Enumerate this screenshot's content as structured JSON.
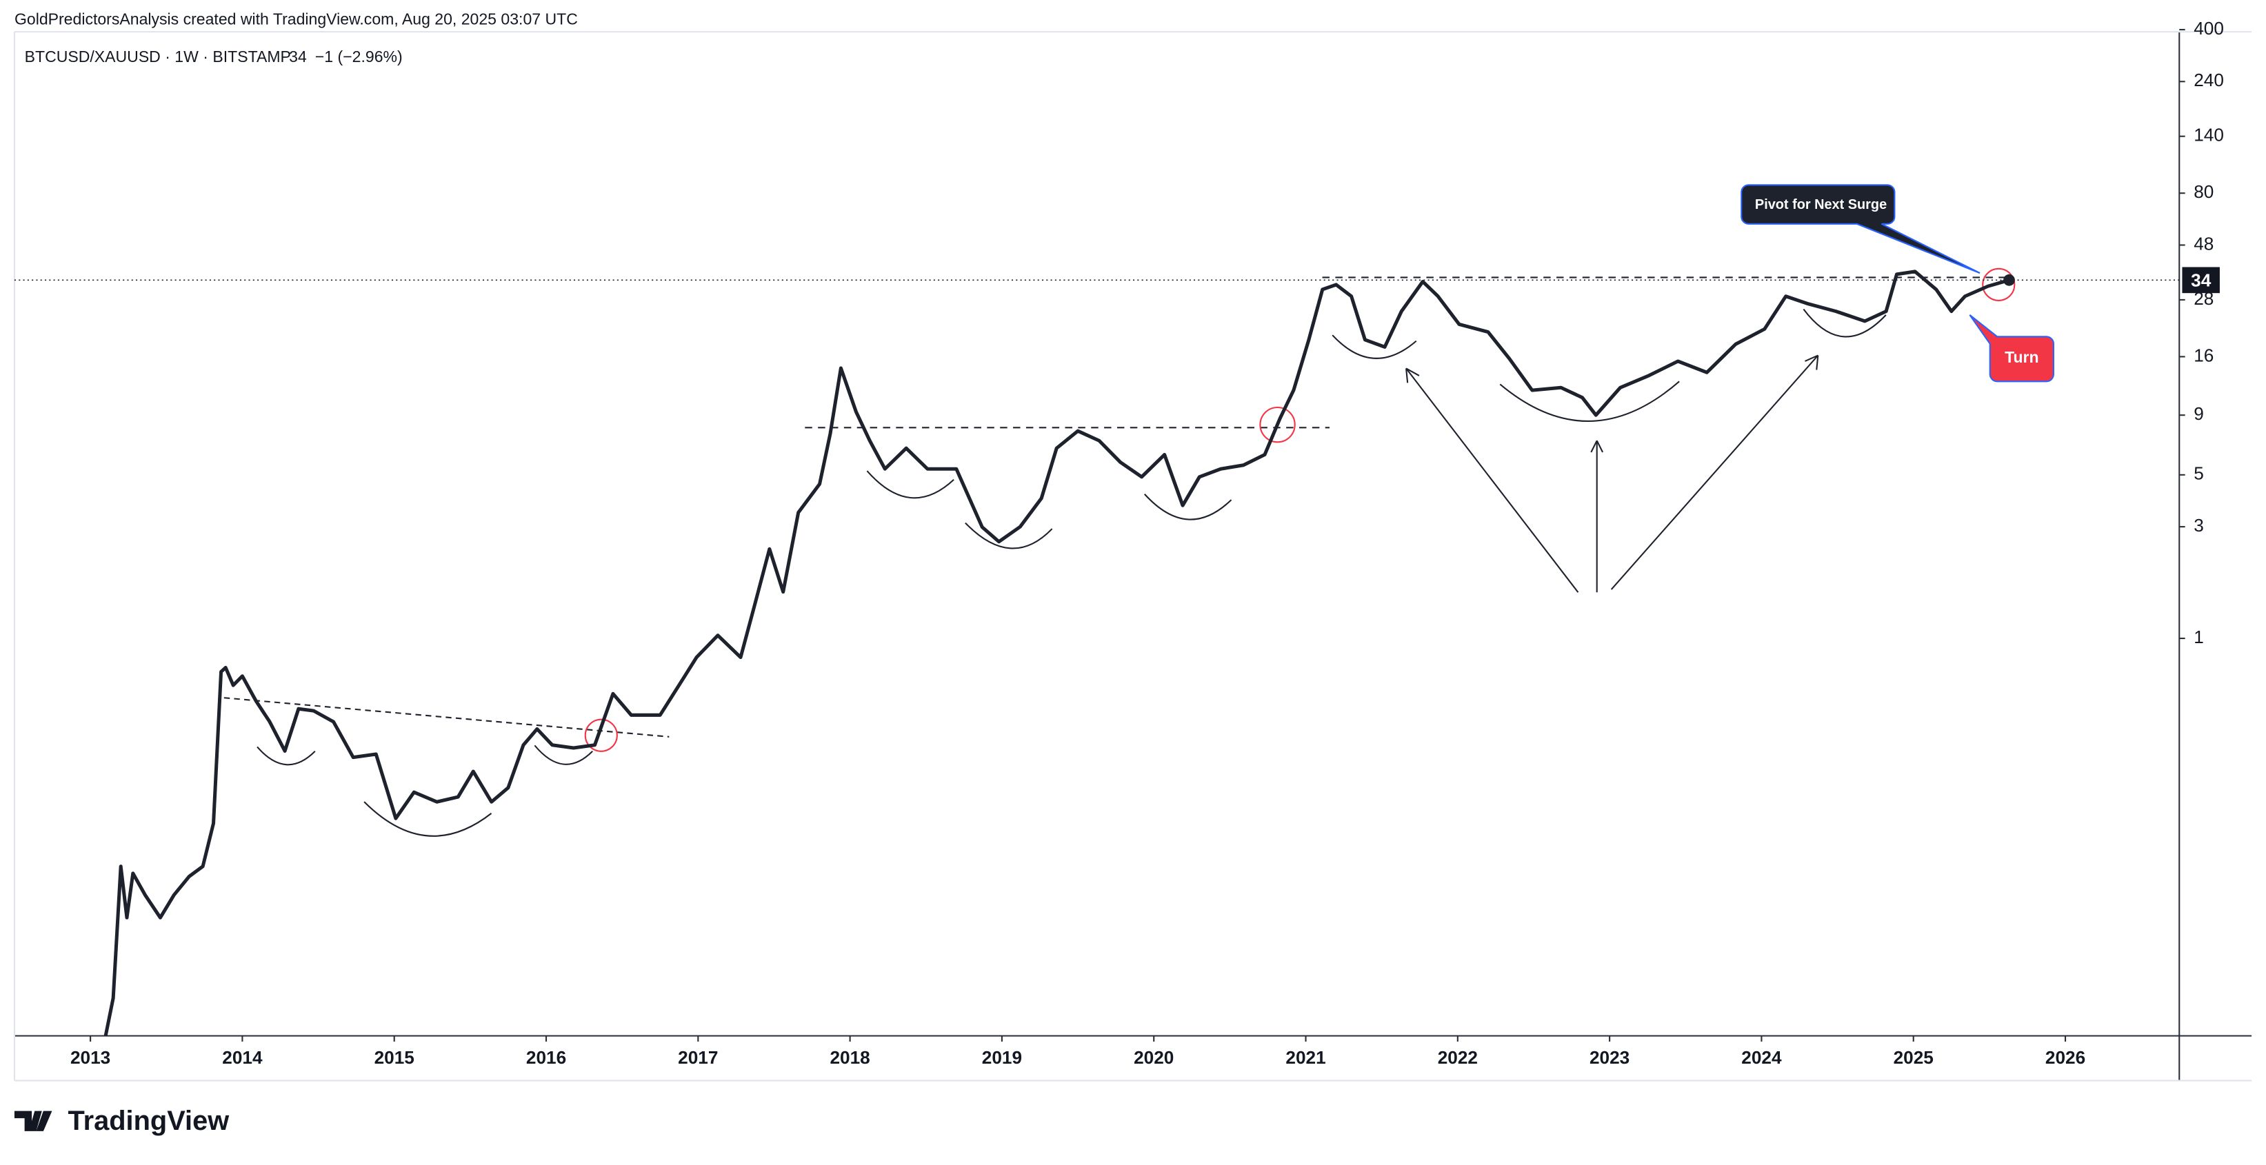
{
  "header": {
    "author_line": "GoldPredictorsAnalysis created with TradingView.com, Aug 20, 2025 03:07 UTC",
    "change_text": "−1 (−2.96%)"
  },
  "chart_data": {
    "type": "line",
    "log_scale": true,
    "x": [
      2013.1,
      2013.15,
      2013.2,
      2013.24,
      2013.28,
      2013.36,
      2013.46,
      2013.55,
      2013.65,
      2013.74,
      2013.81,
      2013.86,
      2013.89,
      2013.94,
      2014.0,
      2014.09,
      2014.18,
      2014.28,
      2014.37,
      2014.47,
      2014.6,
      2014.73,
      2014.88,
      2015.01,
      2015.13,
      2015.28,
      2015.42,
      2015.52,
      2015.64,
      2015.75,
      2015.85,
      2015.94,
      2016.04,
      2016.18,
      2016.32,
      2016.44,
      2016.56,
      2016.75,
      2016.9,
      2016.99,
      2017.13,
      2017.28,
      2017.37,
      2017.47,
      2017.56,
      2017.66,
      2017.8,
      2017.87,
      2017.94,
      2018.04,
      2018.13,
      2018.23,
      2018.37,
      2018.51,
      2018.7,
      2018.87,
      2018.98,
      2019.12,
      2019.26,
      2019.36,
      2019.5,
      2019.64,
      2019.78,
      2019.92,
      2020.07,
      2020.19,
      2020.3,
      2020.44,
      2020.59,
      2020.73,
      2020.83,
      2020.92,
      2021.02,
      2021.11,
      2021.2,
      2021.3,
      2021.39,
      2021.52,
      2021.63,
      2021.77,
      2021.87,
      2022.01,
      2022.2,
      2022.34,
      2022.49,
      2022.68,
      2022.82,
      2022.91,
      2023.07,
      2023.26,
      2023.45,
      2023.64,
      2023.83,
      2024.02,
      2024.16,
      2024.3,
      2024.49,
      2024.68,
      2024.82,
      2024.89,
      2025.01,
      2025.15,
      2025.25,
      2025.34,
      2025.49,
      2025.63
    ],
    "series": [
      {
        "name": "BTCUSD/XAUUSD · 1W · BITSTAMP",
        "color": "#1e222d",
        "values": [
          0.02,
          0.029,
          0.106,
          0.064,
          0.099,
          0.08,
          0.064,
          0.08,
          0.096,
          0.106,
          0.162,
          0.72,
          0.75,
          0.63,
          0.69,
          0.54,
          0.44,
          0.33,
          0.5,
          0.49,
          0.44,
          0.31,
          0.32,
          0.17,
          0.22,
          0.2,
          0.21,
          0.27,
          0.2,
          0.23,
          0.35,
          0.41,
          0.35,
          0.34,
          0.35,
          0.58,
          0.47,
          0.47,
          0.67,
          0.83,
          1.03,
          0.83,
          1.37,
          2.41,
          1.58,
          3.45,
          4.57,
          7.5,
          14.3,
          9.3,
          7.0,
          5.3,
          6.5,
          5.3,
          5.3,
          2.99,
          2.59,
          3.0,
          3.97,
          6.5,
          7.7,
          7.0,
          5.66,
          4.9,
          6.1,
          3.7,
          4.9,
          5.3,
          5.5,
          6.1,
          8.7,
          11.5,
          18.9,
          31,
          32.5,
          29,
          18.9,
          17.6,
          25,
          33.5,
          29,
          22,
          20.4,
          15.7,
          11.5,
          11.8,
          10.7,
          9.0,
          11.8,
          13.3,
          15.3,
          13.7,
          18.1,
          21,
          29,
          27,
          25,
          22.7,
          25,
          36,
          37,
          31,
          25,
          29,
          32,
          34
        ]
      }
    ],
    "last_price": 34,
    "xlim": [
      2012.5,
      2026.75
    ],
    "xticks": [
      2013,
      2014,
      2015,
      2016,
      2017,
      2018,
      2019,
      2020,
      2021,
      2022,
      2023,
      2024,
      2025,
      2026
    ],
    "ylim": [
      0.02,
      400
    ],
    "yticks": [
      400,
      240,
      140,
      80,
      48,
      28,
      16,
      9,
      5,
      3,
      1
    ],
    "annotations": [
      "Pivot for Next Surge",
      "Turn"
    ]
  },
  "footer": {
    "logo": "TradingView"
  }
}
